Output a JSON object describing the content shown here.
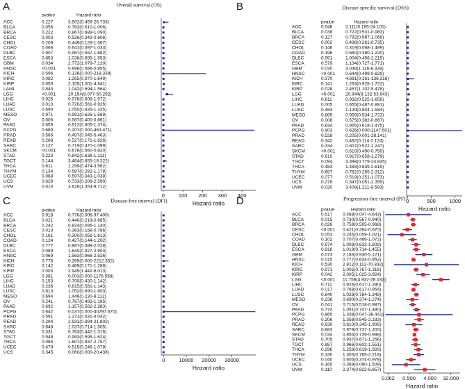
{
  "chart_data": [
    {
      "type": "forest",
      "panel": "A",
      "title": "Overall survival (OS)",
      "columns": [
        "pvalue",
        "Hazard ratio"
      ],
      "xlabel": "Hazard ratio",
      "xlim": [
        -10,
        470
      ],
      "xticks": [
        0,
        100,
        200,
        300,
        400
      ],
      "log": false,
      "color": "#2222bb",
      "marker_color": "#2222bb",
      "categories": [
        "ACC",
        "BLCA",
        "BRCA",
        "CESC",
        "CHOL",
        "COAD",
        "DLBC",
        "ESCA",
        "GBM",
        "HNSC",
        "KICH",
        "KIRC",
        "KIRP",
        "LAML",
        "LGG",
        "LIHC",
        "LUAD",
        "LUSC",
        "MESO",
        "OV",
        "PAAD",
        "PCPG",
        "PRAD",
        "READ",
        "SARC",
        "SKCM",
        "STAD",
        "TGCT",
        "THCA",
        "THYM",
        "UCEC",
        "UCS",
        "UVM"
      ],
      "pvalues": [
        "0.227",
        "0.056",
        "0.222",
        "0.003",
        "0.209",
        "0.068",
        "0.907",
        "0.853",
        "0.034",
        "<0.001",
        "0.596",
        "0.082",
        "0.050",
        "0.843",
        "<0.001",
        "0.926",
        "0.010",
        "0.690",
        "0.971",
        "0.006",
        "0.659",
        "0.689",
        "0.566",
        "0.268",
        "0.127",
        "<0.001",
        "0.223",
        "0.144",
        "0.611",
        "0.134",
        "0.068",
        "0.629",
        "0.010"
      ],
      "values": [
        3.502,
        0.783,
        0.867,
        0.526,
        0.449,
        0.641,
        0.967,
        1.038,
        2.772,
        0.696,
        0.138,
        1.265,
        2.155,
        1.042,
        20.154,
        0.978,
        0.72,
        1.05,
        0.991,
        0.587,
        0.912,
        0.207,
        0.497,
        0.527,
        0.719,
        0.678,
        0.842,
        3.464,
        1.299,
        0.587,
        0.597,
        0.733,
        3.626
      ],
      "lower": [
        0.459,
        0.61,
        0.689,
        0.343,
        0.128,
        0.397,
        0.557,
        0.695,
        1.079,
        0.566,
        0.0,
        0.97,
        1.001,
        0.694,
        8.077,
        0.608,
        0.561,
        0.826,
        0.626,
        0.4,
        0.605,
        0.0,
        0.045,
        0.171,
        0.47,
        0.56,
        0.638,
        0.655,
        0.474,
        0.292,
        0.343,
        0.208,
        1.354
      ],
      "upper": [
        26.733,
        1.006,
        1.09,
        0.806,
        1.567,
        1.033,
        1.682,
        1.553,
        7.12,
        0.855,
        218.339,
        1.649,
        4.641,
        1.564,
        50.292,
        1.572,
        0.926,
        1.335,
        1.569,
        0.861,
        1.374,
        463.471,
        5.463,
        1.626,
        1.099,
        0.82,
        1.111,
        18.322,
        3.562,
        1.178,
        1.038,
        2.59,
        9.712
      ],
      "value_labels": [
        "3.502(0.459-26.733)",
        "0.783(0.610-1.006)",
        "0.867(0.689-1.090)",
        "0.526(0.343-0.806)",
        "0.449(0.128-1.567)",
        "0.641(0.397-1.033)",
        "0.967(0.557-1.682)",
        "1.038(0.695-1.553)",
        "2.772(1.079-7.120)",
        "0.696(0.566-0.855)",
        "0.138(0.000-218.339)",
        "1.265(0.970-1.649)",
        "2.155(1.001-4.641)",
        "1.042(0.694-1.564)",
        "20.154(8.077-50.292)",
        "0.978(0.608-1.572)",
        "0.720(0.561-0.926)",
        "1.050(0.826-1.335)",
        "0.991(0.626-1.569)",
        "0.587(0.400-0.861)",
        "0.912(0.605-1.374)",
        "0.207(0.000-463.471)",
        "0.497(0.045-5.463)",
        "0.527(0.171-1.626)",
        "0.719(0.470-1.099)",
        "0.678(0.560-0.820)",
        "0.842(0.638-1.111)",
        "3.464(0.655-18.322)",
        "1.299(0.474-3.562)",
        "0.587(0.292-1.178)",
        "0.597(0.343-1.038)",
        "0.733(0.208-2.590)",
        "3.626(1.354-9.712)"
      ]
    },
    {
      "type": "forest",
      "panel": "B",
      "title": "Disease-specific survival (DSS)",
      "columns": [
        "pvalue",
        "Hazard ratio"
      ],
      "xlabel": "Hazard ratio",
      "xlim": [
        -20,
        1150
      ],
      "xticks": [
        0,
        500,
        1000
      ],
      "log": false,
      "color": "#2222bb",
      "marker_color": "#2222bb",
      "categories": [
        "ACC",
        "BLCA",
        "BRCA",
        "CESC",
        "CHOL",
        "COAD",
        "DLBC",
        "ESCA",
        "GBM",
        "HNSC",
        "KICH",
        "KIRC",
        "KIRP",
        "LGG",
        "LIHC",
        "LUAD",
        "LUSC",
        "MESO",
        "OV",
        "PAAD",
        "PCPG",
        "PRAD",
        "READ",
        "SARC",
        "SKCM",
        "STAD",
        "TGCT",
        "THCA",
        "THYM",
        "UCEC",
        "UCS",
        "UVM"
      ],
      "pvalues": [
        "0.548",
        "0.038",
        "0.127",
        "0.002",
        "0.146",
        "0.196",
        "0.991",
        "0.579",
        "0.030",
        "<0.001",
        "0.370",
        "0.141",
        "0.028",
        "<0.001",
        "0.811",
        "0.005",
        "0.483",
        "0.889",
        "0.008",
        "0.834",
        "0.903",
        "0.528",
        "0.342",
        "0.334",
        "<0.001",
        "0.610",
        "0.094",
        "0.483",
        "0.657",
        "0.077",
        "0.279",
        "0.020"
      ],
      "values": [
        2.111,
        0.722,
        0.792,
        0.438,
        0.319,
        0.68,
        1.004,
        1.134,
        3.049,
        0.644,
        4.681,
        1.263,
        2.457,
        20.944,
        0.932,
        0.655,
        1.129,
        0.959,
        0.575,
        0.955,
        0.626,
        0.205,
        0.492,
        0.807,
        0.61,
        0.917,
        4.398,
        1.483,
        0.782,
        0.519,
        0.347,
        3.408
      ],
      "lower": [
        0.185,
        0.531,
        0.587,
        0.261,
        0.068,
        0.38,
        0.456,
        0.727,
        1.116,
        0.499,
        0.161,
        0.926,
        1.102,
        8.132,
        0.525,
        0.487,
        0.804,
        0.534,
        0.382,
        0.618,
        0.0,
        0.001,
        0.114,
        0.522,
        0.49,
        0.658,
        0.779,
        0.839,
        0.265,
        0.251,
        0.051,
        1.211
      ],
      "upper": [
        24.101,
        0.983,
        1.068,
        0.735,
        1.489,
        1.22,
        2.215,
        1.771,
        8.328,
        0.829,
        136.316,
        1.722,
        5.478,
        53.943,
        1.656,
        0.881,
        1.584,
        1.723,
        0.867,
        1.475,
        1147.501,
        28.141,
        2.124,
        1.247,
        0.759,
        1.279,
        24.835,
        2.619,
        2.312,
        1.073,
        2.359,
        9.593
      ],
      "value_labels": [
        "2.111(0.185-24.101)",
        "0.722(0.531-0.983)",
        "0.792(0.587-1.068)",
        "0.438(0.261-0.735)",
        "0.319(0.068-1.489)",
        "0.680(0.380-1.220)",
        "1.004(0.456-2.215)",
        "1.134(0.727-1.771)",
        "3.049(1.116-8.328)",
        "0.644(0.499-0.829)",
        "4.681(0.161-136.316)",
        "1.263(0.926-1.722)",
        "2.457(1.102-5.478)",
        "20.944(8.132-53.943)",
        "0.932(0.525-1.656)",
        "0.655(0.487-0.881)",
        "1.129(0.804-1.584)",
        "0.959(0.534-1.723)",
        "0.575(0.382-0.867)",
        "0.955(0.618-1.475)",
        "0.626(0.000-1147.501)",
        "0.205(0.001-28.141)",
        "0.492(0.114-2.124)",
        "0.807(0.522-1.247)",
        "0.610(0.490-0.759)",
        "0.917(0.658-1.279)",
        "4.398(0.779-24.835)",
        "1.483(0.839-2.619)",
        "0.782(0.265-2.312)",
        "0.519(0.251-1.073)",
        "0.347(0.051-2.359)",
        "3.408(1.211-9.593)"
      ]
    },
    {
      "type": "forest",
      "panel": "C",
      "title": "Disease-free interval (DFI)",
      "columns": [
        "pvalue",
        "Hazard ratio"
      ],
      "xlabel": "Hazard ratio",
      "xlim": [
        -1000,
        40500
      ],
      "xticks": [
        0,
        10000,
        20000,
        30000
      ],
      "log": false,
      "color": "#2222bb",
      "marker_color": "#2222bb",
      "categories": [
        "ACC",
        "BLCA",
        "BRCA",
        "CESC",
        "CHOL",
        "COAD",
        "DLBC",
        "ESCA",
        "HNSC",
        "KICH",
        "KIRC",
        "KIRP",
        "LGG",
        "LIHC",
        "LUAD",
        "LUSC",
        "MESO",
        "OV",
        "PAAD",
        "PCPG",
        "PRAD",
        "READ",
        "SARC",
        "STAD",
        "TGCT",
        "THCA",
        "UCEC",
        "UCS"
      ],
      "pvalues": [
        "0.918",
        "0.021",
        "0.242",
        "0.010",
        "0.161",
        "0.124",
        "0.777",
        "0.089",
        "0.069",
        "0.776",
        "0.142",
        "0.003",
        "0.381",
        "0.153",
        "0.236",
        "0.813",
        "0.694",
        "0.241",
        "0.692",
        "0.642",
        "0.591",
        "0.294",
        "0.848",
        "0.331",
        "0.948",
        "0.085",
        "0.478",
        "0.345"
      ],
      "values": [
        0.776,
        0.44,
        0.824,
        0.363,
        0.3,
        0.427,
        0.887,
        1.64,
        1.563,
        0.269,
        0.469,
        2.945,
        0.003,
        0.7,
        0.815,
        1.052,
        1.446,
        0.767,
        1.157,
        0.037,
        1.271,
        2.931,
        1.037,
        0.763,
        0.983,
        1.607,
        0.515,
        0.06
      ],
      "lower": [
        0.006,
        0.219,
        0.595,
        0.168,
        0.056,
        0.144,
        0.388,
        0.927,
        0.966,
        0.0,
        0.171,
        1.442,
        0.0,
        0.43,
        0.581,
        0.69,
        0.23,
        0.493,
        0.562,
        0.0,
        0.531,
        0.394,
        0.714,
        0.442,
        0.595,
        0.937,
        0.246,
        0.0
      ],
      "upper": [
        97.4,
        0.885,
        1.14,
        0.786,
        1.613,
        1.262,
        2.028,
        2.903,
        2.526,
        2212.352,
        1.288,
        6.013,
        1176.558,
        1.142,
        1.143,
        1.603,
        9.112,
        1.195,
        2.383,
        40297.67,
        3.042,
        21.802,
        1.505,
        1.316,
        1.624,
        2.757,
        1.078,
        20.438
      ],
      "value_labels": [
        "0.776(0.006-97.400)",
        "0.440(0.219-0.885)",
        "0.824(0.595-1.140)",
        "0.363(0.168-0.786)",
        "0.300(0.056-1.613)",
        "0.427(0.144-1.262)",
        "0.887(0.388-2.028)",
        "1.640(0.927-2.903)",
        "1.563(0.966-2.526)",
        "0.269(0.000-2212.352)",
        "0.469(0.171-1.288)",
        "2.945(1.442-6.013)",
        "0.003(0.000-1176.558)",
        "0.700(0.430-1.142)",
        "0.815(0.581-1.143)",
        "1.052(0.690-1.603)",
        "1.446(0.230-9.112)",
        "0.767(0.493-1.195)",
        "1.157(0.562-2.383)",
        "0.037(0.000-40297.670)",
        "1.271(0.531-3.042)",
        "2.931(0.394-21.802)",
        "1.037(0.714-1.505)",
        "0.763(0.442-1.316)",
        "0.983(0.595-1.624)",
        "1.607(0.937-2.757)",
        "0.515(0.246-1.078)",
        "0.060(0.000-20.438)"
      ]
    },
    {
      "type": "forest",
      "panel": "D",
      "title": "Progression-free interval (PFI)",
      "columns": [
        "pvalue",
        "Hazard ratio"
      ],
      "xlabel": "Hazard ratio",
      "xlim": [
        0.04,
        80
      ],
      "xticks": [
        {
          "value": 0.0625,
          "label": "0.062"
        },
        {
          "value": 0.5,
          "label": "0.500"
        },
        {
          "value": 4,
          "label": "4.000"
        },
        {
          "value": 32,
          "label": "32.000"
        }
      ],
      "log": true,
      "color": "#1f2f8f",
      "marker_color": "#e8262a",
      "categories": [
        "ACC",
        "BLCA",
        "BRCA",
        "CESC",
        "CHOL",
        "COAD",
        "DLBC",
        "ESCA",
        "GBM",
        "HNSC",
        "KICH",
        "KIRC",
        "KIRP",
        "LGG",
        "LIHC",
        "LUAD",
        "LUSC",
        "MESO",
        "OV",
        "PAAD",
        "PCPG",
        "PRAD",
        "READ",
        "SARC",
        "SKCM",
        "STAD",
        "TGCT",
        "THCA",
        "THYM",
        "UCEC",
        "UCS",
        "UVM"
      ],
      "pvalues": [
        "0.517",
        "0.015",
        "0.026",
        "<0.001",
        "0.053",
        "0.102",
        "0.974",
        "0.918",
        "0.073",
        "0.015",
        "0.530",
        "0.971",
        "0.042",
        "<0.001",
        "0.711",
        "0.017",
        "0.840",
        "0.236",
        "0.041",
        "0.774",
        "0.865",
        "0.206",
        "0.630",
        "0.883",
        "0.034",
        "0.705",
        "0.887",
        "0.296",
        "0.330",
        "0.040",
        "0.165",
        "0.110"
      ],
      "values": [
        0.468,
        0.73,
        0.759,
        0.421,
        0.245,
        0.707,
        1.008,
        1.019,
        2.183,
        0.777,
        2.812,
        1.005,
        2.005,
        11.758,
        0.926,
        0.768,
        1.028,
        0.69,
        0.715,
        1.051,
        1.338,
        1.358,
        0.81,
        0.979,
        0.854,
        0.937,
        0.966,
        1.256,
        1.303,
        0.605,
        0.369,
        2.374
      ],
      "lower": [
        0.047,
        0.567,
        0.595,
        0.264,
        0.059,
        0.466,
        0.632,
        0.714,
        0.93,
        0.634,
        0.112,
        0.767,
        1.025,
        4.932,
        0.617,
        0.617,
        0.784,
        0.374,
        0.518,
        0.747,
        0.047,
        0.845,
        0.345,
        0.737,
        0.739,
        0.671,
        0.602,
        0.819,
        0.765,
        0.374,
        0.09,
        0.822
      ],
      "upper": [
        4.643,
        0.94,
        0.968,
        0.67,
        1.021,
        1.072,
        1.609,
        1.455,
        5.121,
        0.952,
        70.832,
        1.316,
        3.924,
        28.032,
        1.39,
        0.954,
        1.349,
        1.274,
        0.987,
        1.48,
        38.441,
        2.183,
        1.906,
        1.3,
        0.988,
        1.256,
        1.551,
        1.926,
        2.218,
        0.978,
        1.509,
        6.857
      ],
      "value_labels": [
        "0.468(0.047-4.643)",
        "0.730(0.567-0.940)",
        "0.759(0.595-0.968)",
        "0.421(0.264-0.670)",
        "0.245(0.059-1.021)",
        "0.707(0.466-1.072)",
        "1.008(0.632-1.609)",
        "1.019(0.714-1.455)",
        "2.183(0.930-5.121)",
        "0.777(0.634-0.952)",
        "2.812(0.112-70.832)",
        "1.005(0.767-1.316)",
        "2.005(1.025-3.924)",
        "11.758(4.932-28.032)",
        "0.926(0.617-1.390)",
        "0.768(0.617-0.954)",
        "1.028(0.784-1.349)",
        "0.690(0.374-1.274)",
        "0.715(0.518-0.987)",
        "1.051(0.747-1.480)",
        "1.338(0.047-38.441)",
        "1.358(0.845-2.183)",
        "0.810(0.345-1.906)",
        "0.979(0.737-1.300)",
        "0.854(0.739-0.988)",
        "0.937(0.671-1.256)",
        "0.966(0.602-1.551)",
        "1.256(0.819-1.926)",
        "1.303(0.765-2.218)",
        "0.605(0.374-0.978)",
        "0.369(0.090-1.509)",
        "2.374(0.822-6.857)"
      ]
    }
  ]
}
